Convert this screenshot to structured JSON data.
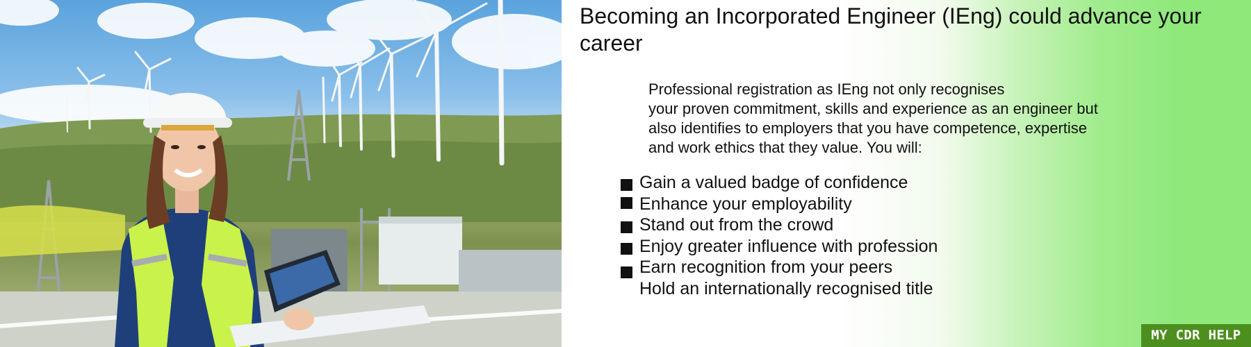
{
  "banner": {
    "title": "Becoming an Incorporated Engineer (IEng) could advance your career",
    "intro": [
      "Professional registration as IEng not only recognises",
      "your proven commitment, skills and experience as an engineer but",
      "also identifies to employers that you have competence, expertise",
      "and work ethics that they value. You will:"
    ],
    "benefits": [
      "Gain a valued badge of confidence",
      "Enhance your employability",
      "Stand out from the crowd",
      "Enjoy greater influence with profession",
      "Earn recognition from your peers",
      "Hold an internationally recognised title"
    ],
    "brand": "MY CDR HELP",
    "photo_icon": "engineer-wind-farm-photo"
  },
  "colors": {
    "panel_green": "#8ee87a",
    "brand_bg": "#4d8f1f",
    "brand_text": "#ffffff",
    "text": "#111111"
  }
}
